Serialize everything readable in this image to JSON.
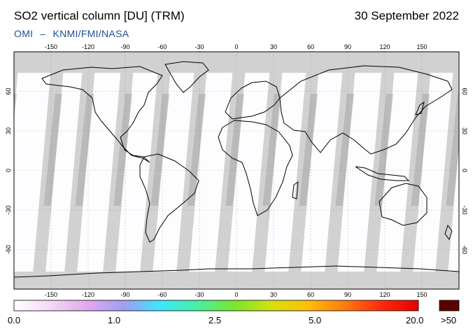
{
  "header": {
    "title": "SO2 vertical column [DU] (TRM)",
    "date": "30 September 2022",
    "instrument": "OMI",
    "separator": "–",
    "institutions": "KNMI/FMI/NASA"
  },
  "map": {
    "projection": "equirectangular",
    "lon_ticks": [
      "-150",
      "-120",
      "-90",
      "-60",
      "-30",
      "0",
      "30",
      "60",
      "90",
      "120",
      "150"
    ],
    "lat_ticks": [
      "60",
      "30",
      "0",
      "-30",
      "-60"
    ],
    "colors": {
      "land_outline": "#000000",
      "no_data": "#d1d1d1",
      "no_data_dark": "#a7a7a7",
      "grid": "#888888"
    }
  },
  "colorbar": {
    "labels": [
      "0.0",
      "1.0",
      "2.5",
      "5.0",
      "20.0"
    ],
    "overflow_label": ">50",
    "colors": [
      "#ffffff",
      "#f4d8f4",
      "#e2a8ee",
      "#9e9ef2",
      "#3ce8ff",
      "#48f0a0",
      "#7ae62a",
      "#d6e012",
      "#ffbe08",
      "#ff7a10",
      "#ff2a08",
      "#e60000"
    ],
    "overflow_color": "#5a0000"
  }
}
